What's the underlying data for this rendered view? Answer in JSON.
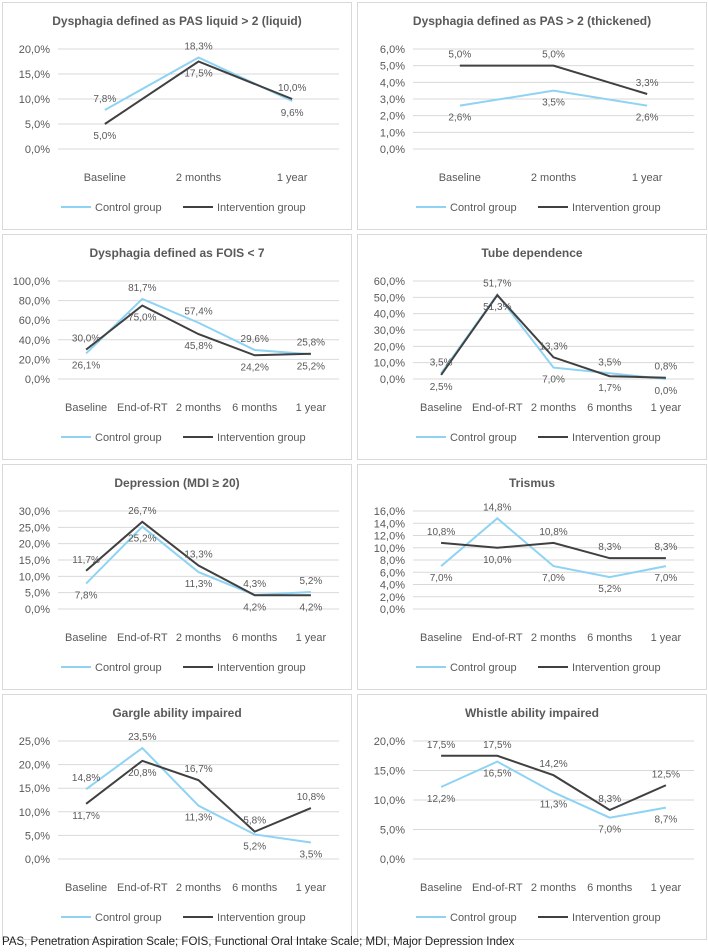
{
  "legend": {
    "control": "Control group",
    "intervention": "Intervention group"
  },
  "colors": {
    "control": "#8fd3f4",
    "intervention": "#404040"
  },
  "caption": "PAS, Penetration Aspiration Scale; FOIS, Functional Oral Intake Scale; MDI, Major Depression Index",
  "chart_data": [
    {
      "type": "line",
      "title": "Dysphagia defined as PAS liquid > 2 (liquid)",
      "categories": [
        "Baseline",
        "2 months",
        "1 year"
      ],
      "ylim": [
        0,
        20
      ],
      "ystep": 5,
      "series": [
        {
          "name": "Control group",
          "values": [
            7.8,
            18.3,
            9.6
          ],
          "labels": [
            "7,8%",
            "18,3%",
            "9,6%"
          ]
        },
        {
          "name": "Intervention group",
          "values": [
            5.0,
            17.5,
            10.0
          ],
          "labels": [
            "5,0%",
            "17,5%",
            "10,0%"
          ]
        }
      ],
      "yticks": [
        "0,0%",
        "5,0%",
        "10,0%",
        "15,0%",
        "20,0%"
      ]
    },
    {
      "type": "line",
      "title": "Dysphagia defined as PAS > 2 (thickened)",
      "categories": [
        "Baseline",
        "2 months",
        "1 year"
      ],
      "ylim": [
        0,
        6
      ],
      "ystep": 1,
      "series": [
        {
          "name": "Control group",
          "values": [
            2.6,
            3.5,
            2.6
          ],
          "labels": [
            "2,6%",
            "3,5%",
            "2,6%"
          ]
        },
        {
          "name": "Intervention group",
          "values": [
            5.0,
            5.0,
            3.3
          ],
          "labels": [
            "5,0%",
            "5,0%",
            "3,3%"
          ]
        }
      ],
      "yticks": [
        "0,0%",
        "1,0%",
        "2,0%",
        "3,0%",
        "4,0%",
        "5,0%",
        "6,0%"
      ]
    },
    {
      "type": "line",
      "title": "Dysphagia defined as FOIS < 7",
      "categories": [
        "Baseline",
        "End-of-RT",
        "2 months",
        "6 months",
        "1 year"
      ],
      "ylim": [
        0,
        100
      ],
      "ystep": 20,
      "series": [
        {
          "name": "Control group",
          "values": [
            26.1,
            81.7,
            57.4,
            29.6,
            25.2
          ],
          "labels": [
            "26,1%",
            "81,7%",
            "57,4%",
            "29,6%",
            "25,2%"
          ]
        },
        {
          "name": "Intervention group",
          "values": [
            30.0,
            75.0,
            45.8,
            24.2,
            25.8
          ],
          "labels": [
            "30,0%",
            "75,0%",
            "45,8%",
            "24,2%",
            "25,8%"
          ]
        }
      ],
      "yticks": [
        "0,0%",
        "20,0%",
        "40,0%",
        "60,0%",
        "80,0%",
        "100,0%"
      ]
    },
    {
      "type": "line",
      "title": "Tube dependence",
      "categories": [
        "Baseline",
        "End-of-RT",
        "2 months",
        "6 months",
        "1 year"
      ],
      "ylim": [
        0,
        60
      ],
      "ystep": 10,
      "series": [
        {
          "name": "Control group",
          "values": [
            3.5,
            51.7,
            7.0,
            3.5,
            0.0
          ],
          "labels": [
            "3,5%",
            "51,7%",
            "7,0%",
            "3,5%",
            "0,0%"
          ]
        },
        {
          "name": "Intervention group",
          "values": [
            2.5,
            51.3,
            13.3,
            1.7,
            0.8
          ],
          "labels": [
            "2,5%",
            "51,3%",
            "13,3%",
            "1,7%",
            "0,8%"
          ]
        }
      ],
      "yticks": [
        "0,0%",
        "10,0%",
        "20,0%",
        "30,0%",
        "40,0%",
        "50,0%",
        "60,0%"
      ]
    },
    {
      "type": "line",
      "title": "Depression (MDI ≥ 20)",
      "categories": [
        "Baseline",
        "End-of-RT",
        "2 months",
        "6 months",
        "1 year"
      ],
      "ylim": [
        0,
        30
      ],
      "ystep": 5,
      "series": [
        {
          "name": "Control group",
          "values": [
            7.8,
            25.2,
            11.3,
            4.3,
            5.2
          ],
          "labels": [
            "7,8%",
            "25,2%",
            "11,3%",
            "4,3%",
            "5,2%"
          ]
        },
        {
          "name": "Intervention group",
          "values": [
            11.7,
            26.7,
            13.3,
            4.2,
            4.2
          ],
          "labels": [
            "11,7%",
            "26,7%",
            "13,3%",
            "4,2%",
            "4,2%"
          ]
        }
      ],
      "yticks": [
        "0,0%",
        "5,0%",
        "10,0%",
        "15,0%",
        "20,0%",
        "25,0%",
        "30,0%"
      ]
    },
    {
      "type": "line",
      "title": "Trismus",
      "categories": [
        "Baseline",
        "End-of-RT",
        "2 months",
        "6 months",
        "1 year"
      ],
      "ylim": [
        0,
        16
      ],
      "ystep": 2,
      "series": [
        {
          "name": "Control group",
          "values": [
            7.0,
            14.8,
            7.0,
            5.2,
            7.0
          ],
          "labels": [
            "7,0%",
            "14,8%",
            "7,0%",
            "5,2%",
            "7,0%"
          ]
        },
        {
          "name": "Intervention group",
          "values": [
            10.8,
            10.0,
            10.8,
            8.3,
            8.3
          ],
          "labels": [
            "10,8%",
            "10,0%",
            "10,8%",
            "8,3%",
            "8,3%"
          ]
        }
      ],
      "yticks": [
        "0,0%",
        "2,0%",
        "4,0%",
        "6,0%",
        "8,0%",
        "10,0%",
        "12,0%",
        "14,0%",
        "16,0%"
      ]
    },
    {
      "type": "line",
      "title": "Gargle ability impaired",
      "categories": [
        "Baseline",
        "End-of-RT",
        "2 months",
        "6 months",
        "1 year"
      ],
      "ylim": [
        0,
        25
      ],
      "ystep": 5,
      "series": [
        {
          "name": "Control group",
          "values": [
            14.8,
            23.5,
            11.3,
            5.2,
            3.5
          ],
          "labels": [
            "14,8%",
            "23,5%",
            "11,3%",
            "5,2%",
            "3,5%"
          ]
        },
        {
          "name": "Intervention group",
          "values": [
            11.7,
            20.8,
            16.7,
            5.8,
            10.8
          ],
          "labels": [
            "11,7%",
            "20,8%",
            "16,7%",
            "5,8%",
            "10,8%"
          ]
        }
      ],
      "yticks": [
        "0,0%",
        "5,0%",
        "10,0%",
        "15,0%",
        "20,0%",
        "25,0%"
      ]
    },
    {
      "type": "line",
      "title": "Whistle ability impaired",
      "categories": [
        "Baseline",
        "End-of-RT",
        "2 months",
        "6 months",
        "1 year"
      ],
      "ylim": [
        0,
        20
      ],
      "ystep": 5,
      "series": [
        {
          "name": "Control group",
          "values": [
            12.2,
            16.5,
            11.3,
            7.0,
            8.7
          ],
          "labels": [
            "12,2%",
            "16,5%",
            "11,3%",
            "7,0%",
            "8,7%"
          ]
        },
        {
          "name": "Intervention group",
          "values": [
            17.5,
            17.5,
            14.2,
            8.3,
            12.5
          ],
          "labels": [
            "17,5%",
            "17,5%",
            "14,2%",
            "8,3%",
            "12,5%"
          ]
        }
      ],
      "yticks": [
        "0,0%",
        "5,0%",
        "10,0%",
        "15,0%",
        "20,0%"
      ]
    }
  ]
}
